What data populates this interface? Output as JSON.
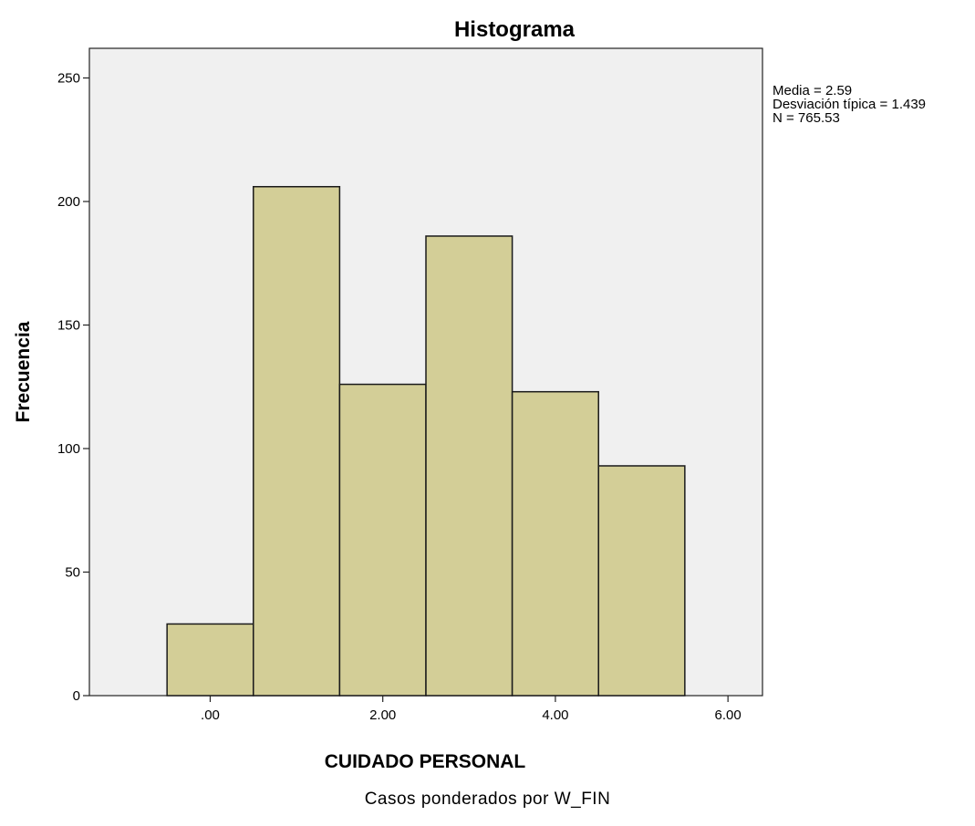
{
  "chart_data": {
    "type": "bar",
    "title": "Histograma",
    "xlabel": "CUIDADO PERSONAL",
    "ylabel": "Frecuencia",
    "xlim": [
      -1.4,
      6.4
    ],
    "ylim": [
      0,
      262
    ],
    "x_ticks": [
      {
        "value": 0,
        "label": ".00"
      },
      {
        "value": 2,
        "label": "2.00"
      },
      {
        "value": 4,
        "label": "4.00"
      },
      {
        "value": 6,
        "label": "6.00"
      }
    ],
    "y_ticks": [
      0,
      50,
      100,
      150,
      200,
      250
    ],
    "bins": [
      {
        "center": 0,
        "value": 29
      },
      {
        "center": 1,
        "value": 206
      },
      {
        "center": 2,
        "value": 126
      },
      {
        "center": 3,
        "value": 186
      },
      {
        "center": 4,
        "value": 123
      },
      {
        "center": 5,
        "value": 93
      }
    ],
    "bin_width": 1,
    "bar_color": "#d3ce97",
    "plot_background": "#f0f0f0",
    "stats": {
      "mean": "Media = 2.59",
      "std": "Desviación típica = 1.439",
      "n": "N = 765.53"
    },
    "footnote": "Casos ponderados por W_FIN"
  }
}
